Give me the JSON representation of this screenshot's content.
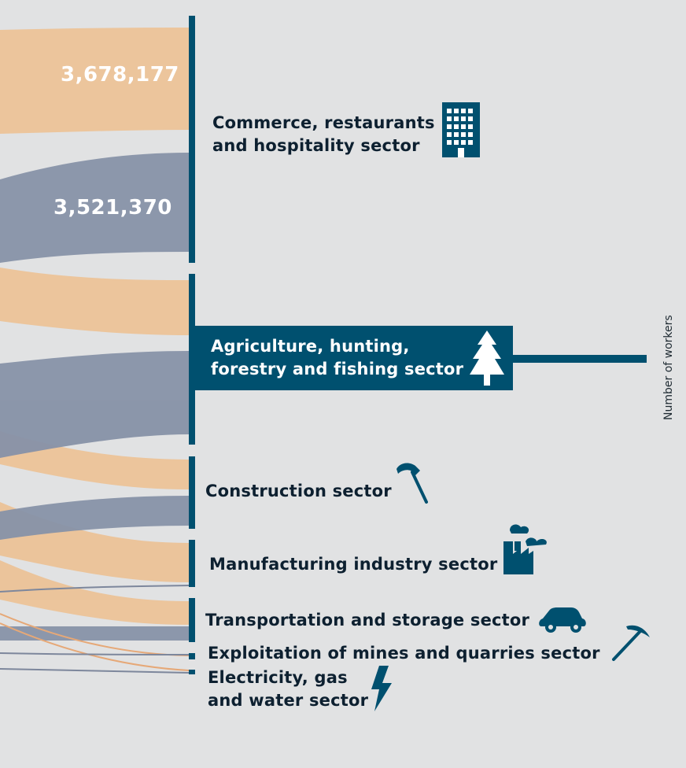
{
  "values": {
    "commerce_orange": "3,678,177",
    "commerce_blue": "3,521,370"
  },
  "sectors": {
    "commerce": [
      "Commerce, restaurants",
      "and hospitality sector"
    ],
    "agriculture": [
      "Agriculture, hunting,",
      "forestry and fishing sector"
    ],
    "construction": "Construction sector",
    "manufacturing": "Manufacturing industry sector",
    "transport": "Transportation and storage sector",
    "mining": "Exploitation of mines and quarries sector",
    "electricity": [
      "Electricity, gas",
      "and water sector"
    ]
  },
  "axis_label": "Number of workers",
  "colors": {
    "background": "#e1e2e3",
    "orange_flow": "#ecc398",
    "blue_flow": "#8792a8",
    "node_bar": "#00506f",
    "text": "#0d2030"
  },
  "icons": [
    "building-icon",
    "tree-icon",
    "hammer-icon",
    "factory-icon",
    "car-icon",
    "pickaxe-icon",
    "lightning-icon"
  ]
}
